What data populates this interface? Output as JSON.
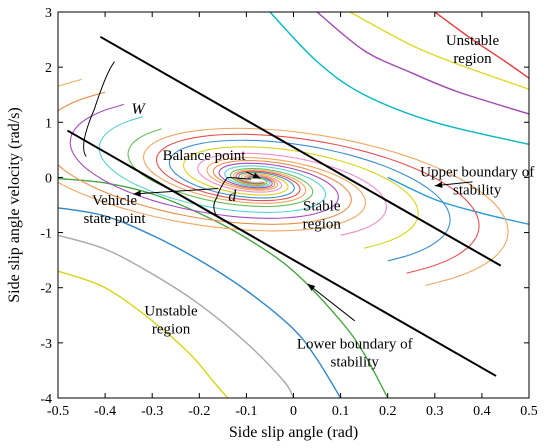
{
  "chart_data": {
    "type": "line",
    "xlabel": "Side slip angle (rad)",
    "ylabel": "Side slip angle velocity (rad/s)",
    "xlim": [
      -0.5,
      0.5
    ],
    "ylim": [
      -4,
      3
    ],
    "xticks": [
      "-0.5",
      "-0.4",
      "-0.3",
      "-0.2",
      "-0.1",
      "0",
      "0.1",
      "0.2",
      "0.3",
      "0.4",
      "0.5"
    ],
    "yticks": [
      "3",
      "2",
      "1",
      "0",
      "-1",
      "-2",
      "-3",
      "-4"
    ],
    "grid": false,
    "boundaries": [
      {
        "name": "Upper boundary of stability",
        "x": [
          -0.41,
          0.44
        ],
        "y": [
          2.55,
          -1.6
        ],
        "color": "#000000"
      },
      {
        "name": "Lower boundary of stability",
        "x": [
          -0.48,
          0.43
        ],
        "y": [
          0.85,
          -3.6
        ],
        "color": "#000000"
      }
    ],
    "unstable_trajectories_upper": [
      {
        "color": "#00b7c3",
        "x": [
          -0.05,
          0.05,
          0.15,
          0.3,
          0.5
        ],
        "y": [
          3,
          2.1,
          1.5,
          1.0,
          0.6
        ]
      },
      {
        "color": "#a347b4",
        "x": [
          0.05,
          0.15,
          0.25,
          0.35,
          0.5
        ],
        "y": [
          3,
          2.3,
          1.9,
          1.55,
          1.15
        ]
      },
      {
        "color": "#e0d82a",
        "x": [
          0.12,
          0.25,
          0.35,
          0.5
        ],
        "y": [
          3,
          2.4,
          2.05,
          1.6
        ]
      },
      {
        "color": "#e83a3a",
        "x": [
          0.3,
          0.38,
          0.45,
          0.5
        ],
        "y": [
          3,
          2.5,
          2.1,
          1.8
        ]
      },
      {
        "color": "#2a9ad6",
        "x": [
          0.2,
          0.3,
          0.4,
          0.5
        ],
        "y": [
          0.0,
          -0.4,
          -0.65,
          -0.85
        ]
      }
    ],
    "unstable_trajectories_lower": [
      {
        "color": "#4aa843",
        "x": [
          -0.5,
          -0.4,
          -0.3,
          -0.2,
          -0.1,
          0.0,
          0.1,
          0.15,
          0.2
        ],
        "y": [
          -0.02,
          -0.1,
          -0.3,
          -0.65,
          -1.1,
          -1.7,
          -2.6,
          -3.2,
          -4
        ]
      },
      {
        "color": "#2f86c8",
        "x": [
          -0.5,
          -0.4,
          -0.3,
          -0.2,
          -0.1,
          0.0,
          0.05,
          0.1
        ],
        "y": [
          -0.55,
          -0.7,
          -1.05,
          -1.5,
          -2.05,
          -2.75,
          -3.3,
          -4
        ]
      },
      {
        "color": "#a8a8a8",
        "x": [
          -0.5,
          -0.4,
          -0.3,
          -0.2,
          -0.1,
          -0.02,
          0.0
        ],
        "y": [
          -1.05,
          -1.3,
          -1.75,
          -2.3,
          -3.0,
          -3.7,
          -4
        ]
      },
      {
        "color": "#d8d31a",
        "x": [
          -0.5,
          -0.4,
          -0.3,
          -0.22,
          -0.17,
          -0.14
        ],
        "y": [
          -1.7,
          -2.0,
          -2.6,
          -3.2,
          -3.7,
          -4
        ]
      }
    ],
    "stable_spiral": {
      "center": [
        -0.08,
        -0.05
      ],
      "colors": [
        "#f0a860",
        "#e88f4a",
        "#a64cc0",
        "#5ad1d5",
        "#67c05a",
        "#f08ecb",
        "#d8d31a",
        "#3d8fd0",
        "#e85050"
      ],
      "tails_x": [
        -0.45,
        -0.4,
        -0.36,
        -0.32,
        -0.28,
        0.1,
        0.15,
        0.2,
        0.24,
        0.28
      ],
      "tails_y": [
        1.55,
        1.35,
        1.15,
        0.95,
        0.75,
        -0.95,
        -1.15,
        -1.35,
        -1.55,
        -1.75
      ]
    },
    "annotations": [
      {
        "text": "Unstable region",
        "lines": [
          "Unstable",
          "region"
        ],
        "at": [
          0.38,
          2.4
        ]
      },
      {
        "text": "Balance point",
        "lines": [
          "Balance point"
        ],
        "at": [
          -0.19,
          0.32
        ]
      },
      {
        "text": "Upper boundary of stability",
        "lines": [
          "Upper boundary of",
          "stability"
        ],
        "at": [
          0.39,
          0.02
        ]
      },
      {
        "text": "Vehicle state point",
        "lines": [
          "Vehicle",
          "state point"
        ],
        "at": [
          -0.38,
          -0.5
        ]
      },
      {
        "text": "Stable region",
        "lines": [
          "Stable",
          "region"
        ],
        "at": [
          0.06,
          -0.6
        ]
      },
      {
        "text": "Unstable region",
        "lines": [
          "Unstable",
          "region"
        ],
        "at": [
          -0.26,
          -2.5
        ]
      },
      {
        "text": "Lower boundary of stability",
        "lines": [
          "Lower boundary of",
          "stability"
        ],
        "at": [
          0.13,
          -3.1
        ]
      },
      {
        "text": "W",
        "lines": [
          "W"
        ],
        "at": [
          -0.33,
          1.15
        ],
        "italic": true
      },
      {
        "text": "d",
        "lines": [
          "d"
        ],
        "at": [
          -0.13,
          -0.43
        ],
        "italic": true
      }
    ]
  }
}
